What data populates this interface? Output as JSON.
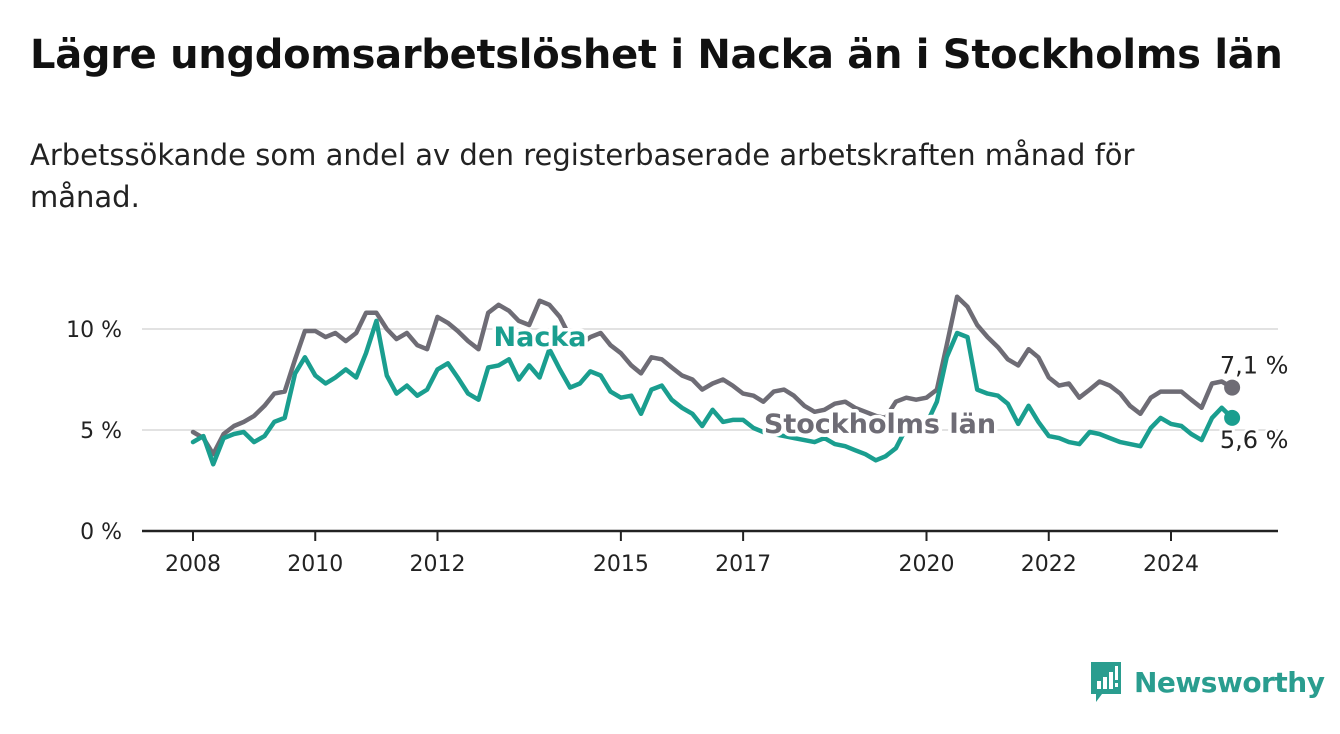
{
  "title": "Lägre ungdomsarbetslöshet i Nacka än i Stockholms län",
  "subtitle": "Arbetssökande som andel av den registerbaserade arbetskraften månad för månad.",
  "brand": {
    "name": "Newsworthy",
    "icon": "newsworthy-logo-icon",
    "color": "#2a9d8f"
  },
  "chart_data": {
    "type": "line",
    "xlabel": "",
    "ylabel": "",
    "xlim": [
      2007.25,
      2025.1
    ],
    "ylim": [
      0,
      12
    ],
    "grid": true,
    "y_ticks": [
      {
        "value": 0,
        "label": "0 %"
      },
      {
        "value": 5,
        "label": "5 %"
      },
      {
        "value": 10,
        "label": "10 %"
      }
    ],
    "x_ticks": [
      {
        "value": 2008,
        "label": "2008"
      },
      {
        "value": 2010,
        "label": "2010"
      },
      {
        "value": 2012,
        "label": "2012"
      },
      {
        "value": 2015,
        "label": "2015"
      },
      {
        "value": 2017,
        "label": "2017"
      },
      {
        "value": 2020,
        "label": "2020"
      },
      {
        "value": 2022,
        "label": "2022"
      },
      {
        "value": 2024,
        "label": "2024"
      }
    ],
    "series": [
      {
        "name": "Stockholms län",
        "color": "#6e6c75",
        "end_label": "7,1 %",
        "points": [
          [
            2008.0,
            4.9
          ],
          [
            2008.17,
            4.6
          ],
          [
            2008.33,
            3.8
          ],
          [
            2008.5,
            4.8
          ],
          [
            2008.67,
            5.2
          ],
          [
            2008.83,
            5.4
          ],
          [
            2009.0,
            5.7
          ],
          [
            2009.17,
            6.2
          ],
          [
            2009.33,
            6.8
          ],
          [
            2009.5,
            6.9
          ],
          [
            2009.67,
            8.5
          ],
          [
            2009.83,
            9.9
          ],
          [
            2010.0,
            9.9
          ],
          [
            2010.17,
            9.6
          ],
          [
            2010.33,
            9.8
          ],
          [
            2010.5,
            9.4
          ],
          [
            2010.67,
            9.8
          ],
          [
            2010.83,
            10.8
          ],
          [
            2011.0,
            10.8
          ],
          [
            2011.17,
            10.0
          ],
          [
            2011.33,
            9.5
          ],
          [
            2011.5,
            9.8
          ],
          [
            2011.67,
            9.2
          ],
          [
            2011.83,
            9.0
          ],
          [
            2012.0,
            10.6
          ],
          [
            2012.17,
            10.3
          ],
          [
            2012.33,
            9.9
          ],
          [
            2012.5,
            9.4
          ],
          [
            2012.67,
            9.0
          ],
          [
            2012.83,
            10.8
          ],
          [
            2013.0,
            11.2
          ],
          [
            2013.17,
            10.9
          ],
          [
            2013.33,
            10.4
          ],
          [
            2013.5,
            10.2
          ],
          [
            2013.67,
            11.4
          ],
          [
            2013.83,
            11.2
          ],
          [
            2014.0,
            10.6
          ],
          [
            2014.17,
            9.6
          ],
          [
            2014.33,
            9.2
          ],
          [
            2014.5,
            9.6
          ],
          [
            2014.67,
            9.8
          ],
          [
            2014.83,
            9.2
          ],
          [
            2015.0,
            8.8
          ],
          [
            2015.17,
            8.2
          ],
          [
            2015.33,
            7.8
          ],
          [
            2015.5,
            8.6
          ],
          [
            2015.67,
            8.5
          ],
          [
            2015.83,
            8.1
          ],
          [
            2016.0,
            7.7
          ],
          [
            2016.17,
            7.5
          ],
          [
            2016.33,
            7.0
          ],
          [
            2016.5,
            7.3
          ],
          [
            2016.67,
            7.5
          ],
          [
            2016.83,
            7.2
          ],
          [
            2017.0,
            6.8
          ],
          [
            2017.17,
            6.7
          ],
          [
            2017.33,
            6.4
          ],
          [
            2017.5,
            6.9
          ],
          [
            2017.67,
            7.0
          ],
          [
            2017.83,
            6.7
          ],
          [
            2018.0,
            6.2
          ],
          [
            2018.17,
            5.9
          ],
          [
            2018.33,
            6.0
          ],
          [
            2018.5,
            6.3
          ],
          [
            2018.67,
            6.4
          ],
          [
            2018.83,
            6.1
          ],
          [
            2019.0,
            5.9
          ],
          [
            2019.17,
            5.7
          ],
          [
            2019.33,
            5.6
          ],
          [
            2019.5,
            6.4
          ],
          [
            2019.67,
            6.6
          ],
          [
            2019.83,
            6.5
          ],
          [
            2020.0,
            6.6
          ],
          [
            2020.17,
            7.0
          ],
          [
            2020.33,
            9.2
          ],
          [
            2020.5,
            11.6
          ],
          [
            2020.67,
            11.1
          ],
          [
            2020.83,
            10.2
          ],
          [
            2021.0,
            9.6
          ],
          [
            2021.17,
            9.1
          ],
          [
            2021.33,
            8.5
          ],
          [
            2021.5,
            8.2
          ],
          [
            2021.67,
            9.0
          ],
          [
            2021.83,
            8.6
          ],
          [
            2022.0,
            7.6
          ],
          [
            2022.17,
            7.2
          ],
          [
            2022.33,
            7.3
          ],
          [
            2022.5,
            6.6
          ],
          [
            2022.67,
            7.0
          ],
          [
            2022.83,
            7.4
          ],
          [
            2023.0,
            7.2
          ],
          [
            2023.17,
            6.8
          ],
          [
            2023.33,
            6.2
          ],
          [
            2023.5,
            5.8
          ],
          [
            2023.67,
            6.6
          ],
          [
            2023.83,
            6.9
          ],
          [
            2024.0,
            6.9
          ],
          [
            2024.17,
            6.9
          ],
          [
            2024.33,
            6.5
          ],
          [
            2024.5,
            6.1
          ],
          [
            2024.67,
            7.3
          ],
          [
            2024.83,
            7.4
          ],
          [
            2025.0,
            7.1
          ]
        ]
      },
      {
        "name": "Nacka",
        "color": "#1a9e8f",
        "end_label": "5,6 %",
        "points": [
          [
            2008.0,
            4.4
          ],
          [
            2008.17,
            4.7
          ],
          [
            2008.33,
            3.3
          ],
          [
            2008.5,
            4.6
          ],
          [
            2008.67,
            4.8
          ],
          [
            2008.83,
            4.9
          ],
          [
            2009.0,
            4.4
          ],
          [
            2009.17,
            4.7
          ],
          [
            2009.33,
            5.4
          ],
          [
            2009.5,
            5.6
          ],
          [
            2009.67,
            7.8
          ],
          [
            2009.83,
            8.6
          ],
          [
            2010.0,
            7.7
          ],
          [
            2010.17,
            7.3
          ],
          [
            2010.33,
            7.6
          ],
          [
            2010.5,
            8.0
          ],
          [
            2010.67,
            7.6
          ],
          [
            2010.83,
            8.8
          ],
          [
            2011.0,
            10.4
          ],
          [
            2011.17,
            7.7
          ],
          [
            2011.33,
            6.8
          ],
          [
            2011.5,
            7.2
          ],
          [
            2011.67,
            6.7
          ],
          [
            2011.83,
            7.0
          ],
          [
            2012.0,
            8.0
          ],
          [
            2012.17,
            8.3
          ],
          [
            2012.33,
            7.6
          ],
          [
            2012.5,
            6.8
          ],
          [
            2012.67,
            6.5
          ],
          [
            2012.83,
            8.1
          ],
          [
            2013.0,
            8.2
          ],
          [
            2013.17,
            8.5
          ],
          [
            2013.33,
            7.5
          ],
          [
            2013.5,
            8.2
          ],
          [
            2013.67,
            7.6
          ],
          [
            2013.83,
            9.0
          ],
          [
            2014.0,
            8.0
          ],
          [
            2014.17,
            7.1
          ],
          [
            2014.33,
            7.3
          ],
          [
            2014.5,
            7.9
          ],
          [
            2014.67,
            7.7
          ],
          [
            2014.83,
            6.9
          ],
          [
            2015.0,
            6.6
          ],
          [
            2015.17,
            6.7
          ],
          [
            2015.33,
            5.8
          ],
          [
            2015.5,
            7.0
          ],
          [
            2015.67,
            7.2
          ],
          [
            2015.83,
            6.5
          ],
          [
            2016.0,
            6.1
          ],
          [
            2016.17,
            5.8
          ],
          [
            2016.33,
            5.2
          ],
          [
            2016.5,
            6.0
          ],
          [
            2016.67,
            5.4
          ],
          [
            2016.83,
            5.5
          ],
          [
            2017.0,
            5.5
          ],
          [
            2017.17,
            5.1
          ],
          [
            2017.33,
            4.9
          ],
          [
            2017.5,
            4.8
          ],
          [
            2017.67,
            4.7
          ],
          [
            2017.83,
            4.6
          ],
          [
            2018.0,
            4.5
          ],
          [
            2018.17,
            4.4
          ],
          [
            2018.33,
            4.6
          ],
          [
            2018.5,
            4.3
          ],
          [
            2018.67,
            4.2
          ],
          [
            2018.83,
            4.0
          ],
          [
            2019.0,
            3.8
          ],
          [
            2019.17,
            3.5
          ],
          [
            2019.33,
            3.7
          ],
          [
            2019.5,
            4.1
          ],
          [
            2019.67,
            5.1
          ],
          [
            2019.83,
            5.6
          ],
          [
            2020.0,
            5.3
          ],
          [
            2020.17,
            6.4
          ],
          [
            2020.33,
            8.6
          ],
          [
            2020.5,
            9.8
          ],
          [
            2020.67,
            9.6
          ],
          [
            2020.83,
            7.0
          ],
          [
            2021.0,
            6.8
          ],
          [
            2021.17,
            6.7
          ],
          [
            2021.33,
            6.3
          ],
          [
            2021.5,
            5.3
          ],
          [
            2021.67,
            6.2
          ],
          [
            2021.83,
            5.4
          ],
          [
            2022.0,
            4.7
          ],
          [
            2022.17,
            4.6
          ],
          [
            2022.33,
            4.4
          ],
          [
            2022.5,
            4.3
          ],
          [
            2022.67,
            4.9
          ],
          [
            2022.83,
            4.8
          ],
          [
            2023.0,
            4.6
          ],
          [
            2023.17,
            4.4
          ],
          [
            2023.33,
            4.3
          ],
          [
            2023.5,
            4.2
          ],
          [
            2023.67,
            5.1
          ],
          [
            2023.83,
            5.6
          ],
          [
            2024.0,
            5.3
          ],
          [
            2024.17,
            5.2
          ],
          [
            2024.33,
            4.8
          ],
          [
            2024.5,
            4.5
          ],
          [
            2024.67,
            5.6
          ],
          [
            2024.83,
            6.1
          ],
          [
            2025.0,
            5.6
          ]
        ]
      }
    ],
    "annotations": [
      {
        "text": "Nacka",
        "series": "Nacka"
      },
      {
        "text": "Stockholms län",
        "series": "Stockholms län"
      }
    ]
  }
}
